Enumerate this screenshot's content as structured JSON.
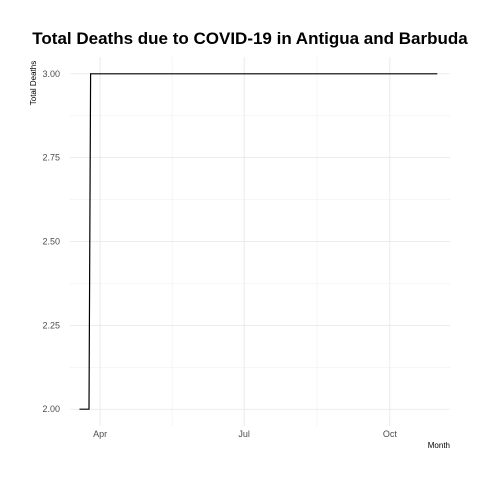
{
  "chart_data": {
    "type": "line",
    "title": "Total Deaths due to COVID-19 in Antigua and Barbuda",
    "xlabel": "Month",
    "ylabel": "Total Deaths",
    "x_tick_labels": [
      "Apr",
      "Jul",
      "Oct"
    ],
    "x_tick_dates": [
      "2020-04-01",
      "2020-07-01",
      "2020-10-01"
    ],
    "xlim": [
      "2020-03-13",
      "2020-11-08"
    ],
    "y_ticks": [
      2.0,
      2.25,
      2.5,
      2.75,
      3.0
    ],
    "y_tick_labels": [
      "2.00",
      "2.25",
      "2.50",
      "2.75",
      "3.00"
    ],
    "ylim": [
      1.95,
      3.05
    ],
    "grid": true,
    "series": [
      {
        "x": [
          "2020-03-19",
          "2020-03-25",
          "2020-03-26",
          "2020-10-31"
        ],
        "y": [
          2,
          2,
          3,
          3
        ]
      }
    ]
  }
}
